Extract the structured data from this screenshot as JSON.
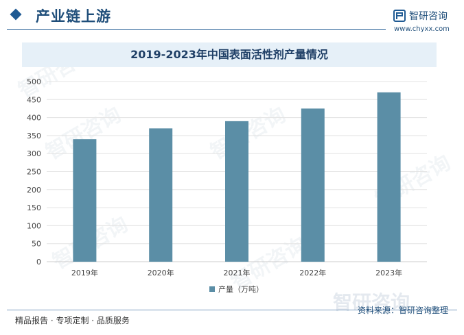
{
  "header": {
    "title": "产业链上游",
    "brand_name": "智研咨询",
    "brand_url": "www.chyxx.com"
  },
  "footer": {
    "left_text": "精品报告 · 专项定制 · 品质服务",
    "source_text": "资料来源：智研咨询整理"
  },
  "watermark_text": "智研咨询",
  "colors": {
    "bar": "#5b8ea6",
    "accent": "#1f5a93"
  },
  "chart_data": {
    "type": "bar",
    "title": "2019-2023年中国表面活性剂产量情况",
    "categories": [
      "2019年",
      "2020年",
      "2021年",
      "2022年",
      "2023年"
    ],
    "series": [
      {
        "name": "产量（万吨）",
        "values": [
          340,
          370,
          390,
          425,
          470
        ]
      }
    ],
    "xlabel": "",
    "ylabel": "",
    "ylim": [
      0,
      500
    ],
    "yticks": [
      0,
      50,
      100,
      150,
      200,
      250,
      300,
      350,
      400,
      450,
      500
    ],
    "grid": true,
    "legend": "bottom"
  }
}
